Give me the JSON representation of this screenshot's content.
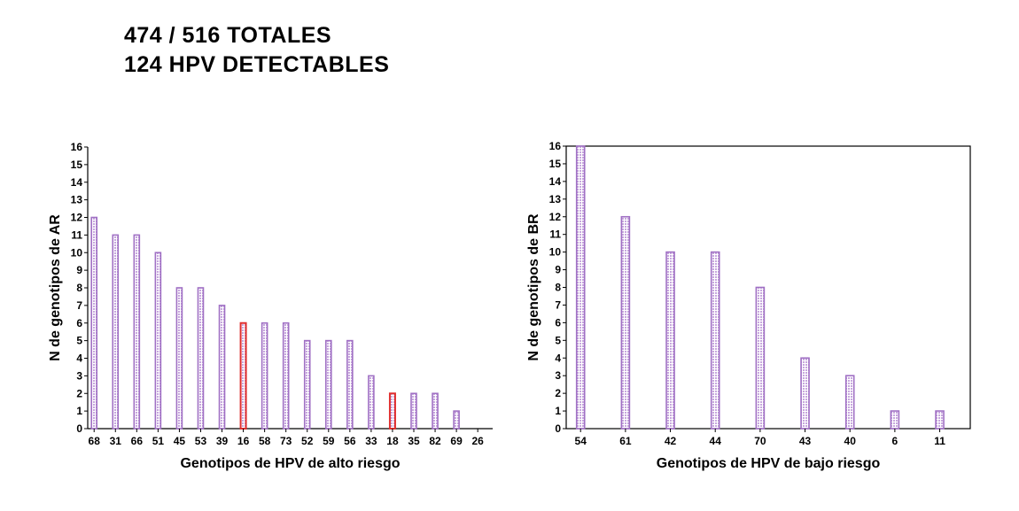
{
  "header": {
    "line1": "474 / 516 TOTALES",
    "line2": "124 HPV DETECTABLES"
  },
  "colors": {
    "bar_fill": "#c6a6dd",
    "bar_edge": "#a070c4",
    "highlight_edge": "#e03030",
    "axis": "#000000"
  },
  "chart_data": [
    {
      "type": "bar",
      "title": "",
      "xlabel": "Genotipos de HPV de alto riesgo",
      "ylabel": "N de genotipos de AR",
      "ylim": [
        0,
        16
      ],
      "yticks": [
        0,
        1,
        2,
        3,
        4,
        5,
        6,
        7,
        8,
        9,
        10,
        11,
        12,
        13,
        14,
        15,
        16
      ],
      "categories": [
        "68",
        "31",
        "66",
        "51",
        "45",
        "53",
        "39",
        "16",
        "58",
        "73",
        "52",
        "59",
        "56",
        "33",
        "18",
        "35",
        "82",
        "69",
        "26"
      ],
      "values": [
        12,
        11,
        11,
        10,
        8,
        8,
        7,
        6,
        6,
        6,
        5,
        5,
        5,
        3,
        2,
        2,
        2,
        1,
        0
      ],
      "highlighted": [
        "16",
        "18"
      ]
    },
    {
      "type": "bar",
      "title": "",
      "xlabel": "Genotipos de HPV de bajo riesgo",
      "ylabel": "N de genotipos de BR",
      "ylim": [
        0,
        16
      ],
      "yticks": [
        0,
        1,
        2,
        3,
        4,
        5,
        6,
        7,
        8,
        9,
        10,
        11,
        12,
        13,
        14,
        15,
        16
      ],
      "categories": [
        "54",
        "61",
        "42",
        "44",
        "70",
        "43",
        "40",
        "6",
        "11"
      ],
      "values": [
        16,
        12,
        10,
        10,
        8,
        4,
        3,
        1,
        1
      ],
      "highlighted": []
    }
  ]
}
